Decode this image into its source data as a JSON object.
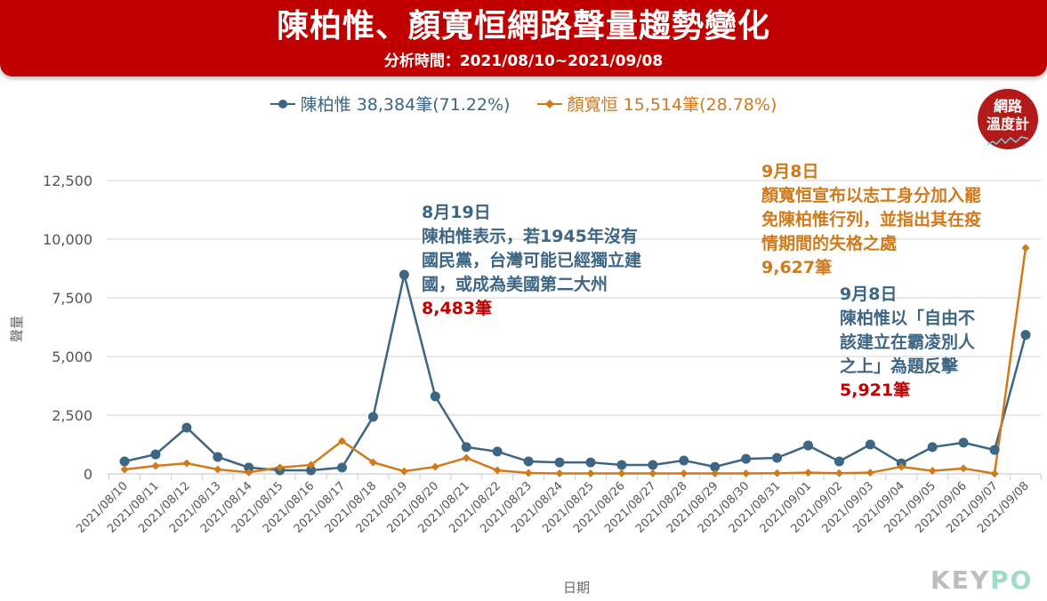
{
  "header": {
    "title": "陳柏惟、顏寬恒網路聲量趨勢變化",
    "subtitle": "分析時間：2021/08/10~2021/09/08"
  },
  "legend": [
    {
      "label": "陳柏惟 38,384筆(71.22%)"
    },
    {
      "label": "顏寬恒 15,514筆(28.78%)"
    }
  ],
  "badge": {
    "line1": "網路",
    "line2": "溫度計"
  },
  "annotations": {
    "a1": {
      "date": "8月19日",
      "lines": [
        "陳柏惟表示，若1945年沒有",
        "國民黨，台灣可能已經獨立建",
        "國，或成為美國第二大州"
      ],
      "value": "8,483筆"
    },
    "a2": {
      "date": "9月8日",
      "lines": [
        "顏寬恒宣布以志工身分加入罷",
        "免陳柏惟行列，並指出其在疫",
        "情期間的失格之處"
      ],
      "value": "9,627筆"
    },
    "a3": {
      "date": "9月8日",
      "lines": [
        "陳柏惟以「自由不",
        "該建立在霸凌別人",
        "之上」為題反擊"
      ],
      "value": "5,921筆"
    }
  },
  "logo": {
    "key": "KEY",
    "po": "PO"
  },
  "colors": {
    "blue": "#3d6584",
    "orange": "#d07a1c",
    "red": "#c00000"
  },
  "chart_data": {
    "type": "line",
    "xlabel": "日期",
    "ylabel": "聲量",
    "ylim": [
      0,
      12500
    ],
    "yticks": [
      0,
      2500,
      5000,
      7500,
      10000,
      12500
    ],
    "ytick_labels": [
      "0",
      "2,500",
      "5,000",
      "7,500",
      "10,000",
      "12,500"
    ],
    "grid": true,
    "legend_position": "top-center",
    "x": [
      "2021/08/10",
      "2021/08/11",
      "2021/08/12",
      "2021/08/13",
      "2021/08/14",
      "2021/08/15",
      "2021/08/16",
      "2021/08/17",
      "2021/08/18",
      "2021/08/19",
      "2021/08/20",
      "2021/08/21",
      "2021/08/22",
      "2021/08/23",
      "2021/08/24",
      "2021/08/25",
      "2021/08/26",
      "2021/08/27",
      "2021/08/28",
      "2021/08/29",
      "2021/08/30",
      "2021/08/31",
      "2021/09/01",
      "2021/09/02",
      "2021/09/03",
      "2021/09/04",
      "2021/09/05",
      "2021/09/06",
      "2021/09/07",
      "2021/09/08"
    ],
    "series": [
      {
        "name": "陳柏惟",
        "color": "#3d6584",
        "marker": "circle",
        "values": [
          530,
          830,
          1970,
          720,
          270,
          150,
          150,
          270,
          2430,
          8483,
          3300,
          1140,
          950,
          530,
          490,
          490,
          380,
          380,
          570,
          300,
          640,
          680,
          1210,
          530,
          1250,
          450,
          1140,
          1330,
          1020,
          5921
        ]
      },
      {
        "name": "顏寬恒",
        "color": "#d07a1c",
        "marker": "diamond",
        "values": [
          190,
          340,
          450,
          190,
          60,
          270,
          380,
          1400,
          490,
          110,
          300,
          680,
          150,
          40,
          20,
          20,
          20,
          20,
          20,
          20,
          20,
          30,
          50,
          30,
          50,
          300,
          130,
          230,
          10,
          9627
        ]
      }
    ]
  }
}
